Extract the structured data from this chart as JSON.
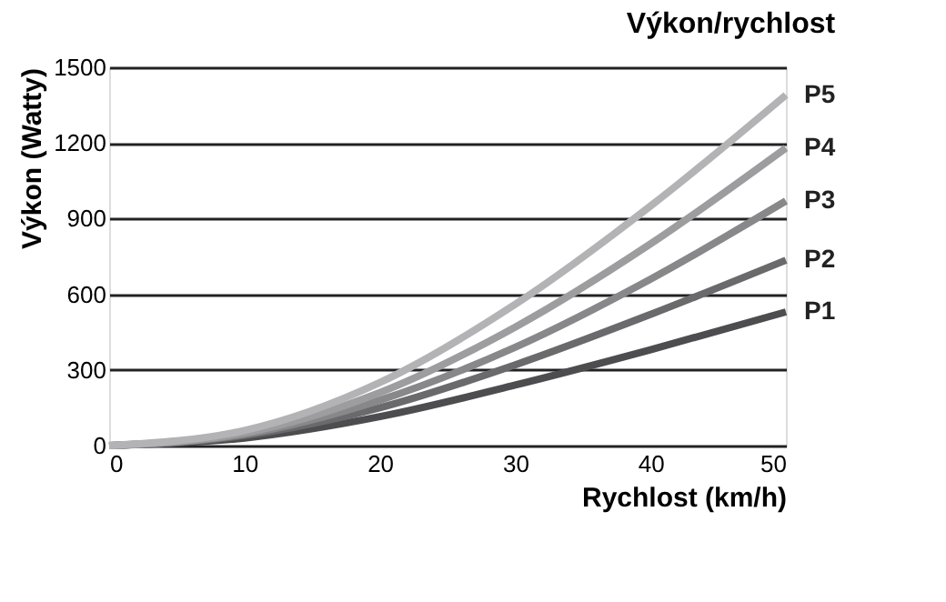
{
  "chart_data": {
    "type": "line",
    "title": "Výkon/rychlost",
    "xlabel": "Rychlost (km/h)",
    "ylabel": "Výkon (Watty)",
    "x": [
      0,
      10,
      20,
      30,
      40,
      50
    ],
    "series": [
      {
        "name": "P1",
        "color": "#4d4d4f",
        "values": [
          0,
          30,
          115,
          240,
          380,
          530
        ]
      },
      {
        "name": "P2",
        "color": "#6a6a6c",
        "values": [
          0,
          40,
          150,
          320,
          520,
          735
        ]
      },
      {
        "name": "P3",
        "color": "#88888a",
        "values": [
          0,
          45,
          180,
          390,
          660,
          970
        ]
      },
      {
        "name": "P4",
        "color": "#9d9d9f",
        "values": [
          0,
          50,
          210,
          470,
          800,
          1180
        ]
      },
      {
        "name": "P5",
        "color": "#b3b3b5",
        "values": [
          0,
          60,
          250,
          560,
          950,
          1390
        ]
      }
    ],
    "xlim": [
      0,
      50
    ],
    "xticks": [
      0,
      10,
      20,
      30,
      40,
      50
    ],
    "ylim": [
      0,
      1500
    ],
    "yticks": [
      0,
      300,
      600,
      900,
      1200,
      1500
    ],
    "grid": "y",
    "legend": false,
    "marker": "none",
    "line_style": "solid"
  }
}
